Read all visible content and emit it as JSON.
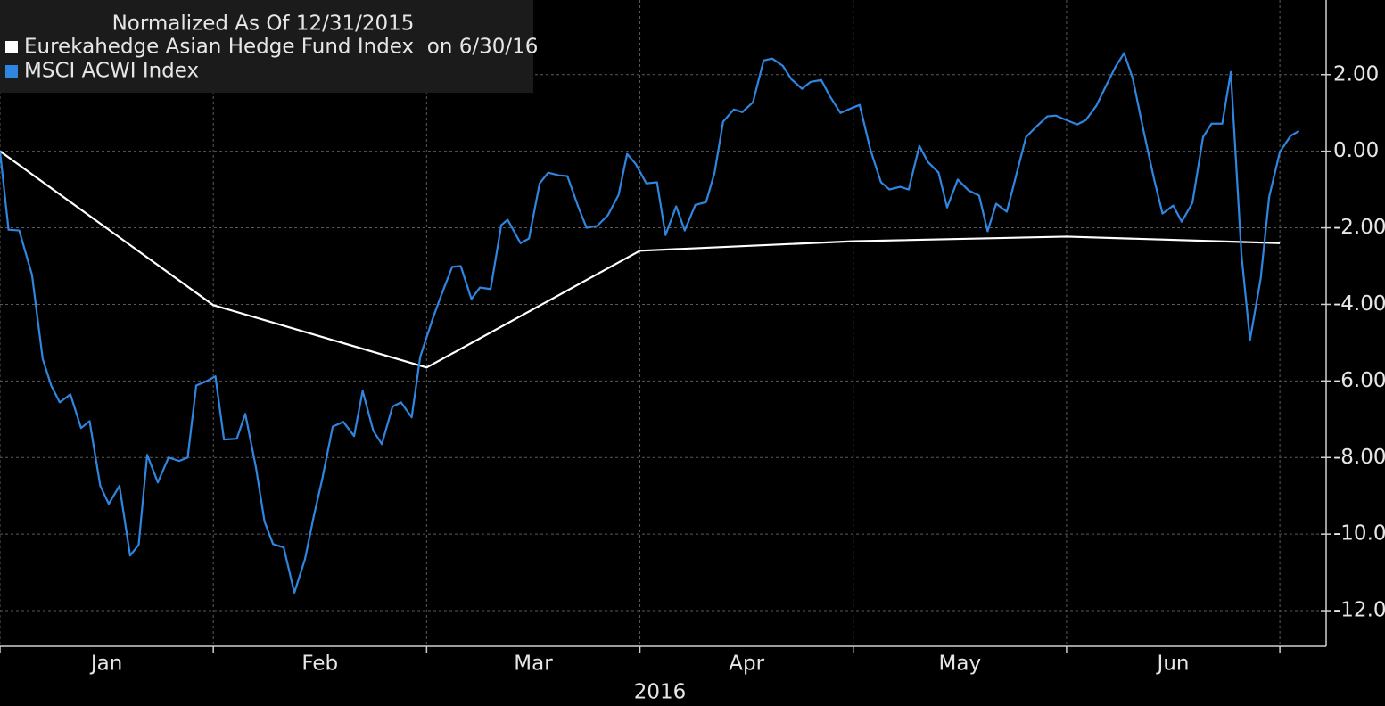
{
  "chart_data": {
    "type": "line",
    "legend_title": "Normalized As Of 12/31/2015",
    "x_label": "2016",
    "categories": [
      "Jan",
      "Feb",
      "Mar",
      "Apr",
      "May",
      "Jun"
    ],
    "xlim": [
      0,
      6.217
    ],
    "xticks": [
      0,
      1,
      2,
      3,
      4,
      5,
      6
    ],
    "ylim": [
      -12.93,
      3.95
    ],
    "yticks": [
      {
        "value": 2,
        "label": "2.00"
      },
      {
        "value": 0,
        "label": "0.00"
      },
      {
        "value": -2,
        "label": "-2.00"
      },
      {
        "value": -4,
        "label": "-4.00"
      },
      {
        "value": -6,
        "label": "-6.00"
      },
      {
        "value": -8,
        "label": "-8.00"
      },
      {
        "value": -10,
        "label": "-10.00"
      },
      {
        "value": -12,
        "label": "-12.00"
      }
    ],
    "grid": true,
    "legend": "upper left",
    "series": [
      {
        "name": "Eurekahedge Asian Hedge Fund Index  on 6/30/16",
        "color": "#ffffff",
        "x": [
          0,
          1,
          2,
          3,
          4,
          5,
          6
        ],
        "values": [
          0,
          -4.02,
          -5.65,
          -2.6,
          -2.35,
          -2.23,
          -2.4
        ]
      },
      {
        "name": "MSCI ACWI Index",
        "color": "#2f86e0",
        "x": [
          0,
          0.04,
          0.09,
          0.15,
          0.2,
          0.24,
          0.28,
          0.33,
          0.38,
          0.42,
          0.47,
          0.51,
          0.56,
          0.61,
          0.65,
          0.69,
          0.74,
          0.79,
          0.84,
          0.88,
          0.92,
          0.97,
          1.01,
          1.05,
          1.11,
          1.15,
          1.2,
          1.24,
          1.28,
          1.33,
          1.38,
          1.43,
          1.47,
          1.51,
          1.56,
          1.61,
          1.66,
          1.7,
          1.75,
          1.79,
          1.84,
          1.88,
          1.93,
          1.97,
          2.03,
          2.07,
          2.12,
          2.16,
          2.21,
          2.25,
          2.3,
          2.35,
          2.38,
          2.44,
          2.48,
          2.53,
          2.57,
          2.62,
          2.66,
          2.71,
          2.75,
          2.8,
          2.85,
          2.9,
          2.94,
          2.98,
          3.03,
          3.08,
          3.12,
          3.17,
          3.21,
          3.26,
          3.31,
          3.35,
          3.39,
          3.44,
          3.48,
          3.53,
          3.58,
          3.62,
          3.67,
          3.71,
          3.76,
          3.8,
          3.85,
          3.89,
          3.94,
          3.99,
          4.03,
          4.08,
          4.13,
          4.17,
          4.22,
          4.26,
          4.31,
          4.35,
          4.4,
          4.44,
          4.49,
          4.54,
          4.59,
          4.63,
          4.67,
          4.72,
          4.81,
          4.86,
          4.91,
          4.95,
          5.0,
          5.05,
          5.09,
          5.14,
          5.18,
          5.23,
          5.27,
          5.31,
          5.36,
          5.41,
          5.45,
          5.5,
          5.54,
          5.59,
          5.64,
          5.68,
          5.73,
          5.77,
          5.82,
          5.86,
          5.91,
          5.95,
          6.0,
          6.05,
          6.09
        ],
        "values": [
          0,
          -2.05,
          -2.07,
          -3.23,
          -5.42,
          -6.12,
          -6.56,
          -6.35,
          -7.23,
          -7.05,
          -8.74,
          -9.21,
          -8.74,
          -10.56,
          -10.28,
          -7.93,
          -8.65,
          -8.0,
          -8.09,
          -8.0,
          -6.12,
          -6.0,
          -5.88,
          -7.53,
          -7.51,
          -6.86,
          -8.26,
          -9.67,
          -10.26,
          -10.35,
          -11.53,
          -10.65,
          -9.56,
          -8.58,
          -7.19,
          -7.07,
          -7.44,
          -6.26,
          -7.3,
          -7.65,
          -6.67,
          -6.56,
          -6.95,
          -5.37,
          -4.35,
          -3.74,
          -3.02,
          -3.0,
          -3.86,
          -3.56,
          -3.6,
          -1.93,
          -1.79,
          -2.4,
          -2.28,
          -0.84,
          -0.56,
          -0.63,
          -0.65,
          -1.44,
          -2.0,
          -1.95,
          -1.67,
          -1.14,
          -0.07,
          -0.33,
          -0.84,
          -0.81,
          -2.19,
          -1.44,
          -2.07,
          -1.4,
          -1.33,
          -0.56,
          0.77,
          1.09,
          1.02,
          1.28,
          2.37,
          2.42,
          2.23,
          1.88,
          1.63,
          1.81,
          1.86,
          1.44,
          1.0,
          1.12,
          1.21,
          0.05,
          -0.81,
          -1.0,
          -0.93,
          -1.0,
          0.14,
          -0.28,
          -0.56,
          -1.47,
          -0.74,
          -1.02,
          -1.16,
          -2.09,
          -1.37,
          -1.58,
          0.37,
          0.65,
          0.91,
          0.93,
          0.81,
          0.7,
          0.81,
          1.19,
          1.65,
          2.21,
          2.56,
          1.91,
          0.56,
          -0.72,
          -1.63,
          -1.42,
          -1.84,
          -1.35,
          0.37,
          0.72,
          0.72,
          2.07,
          -2.7,
          -4.93,
          -3.33,
          -1.19,
          -0.02,
          0.4,
          0.53
        ]
      }
    ]
  }
}
